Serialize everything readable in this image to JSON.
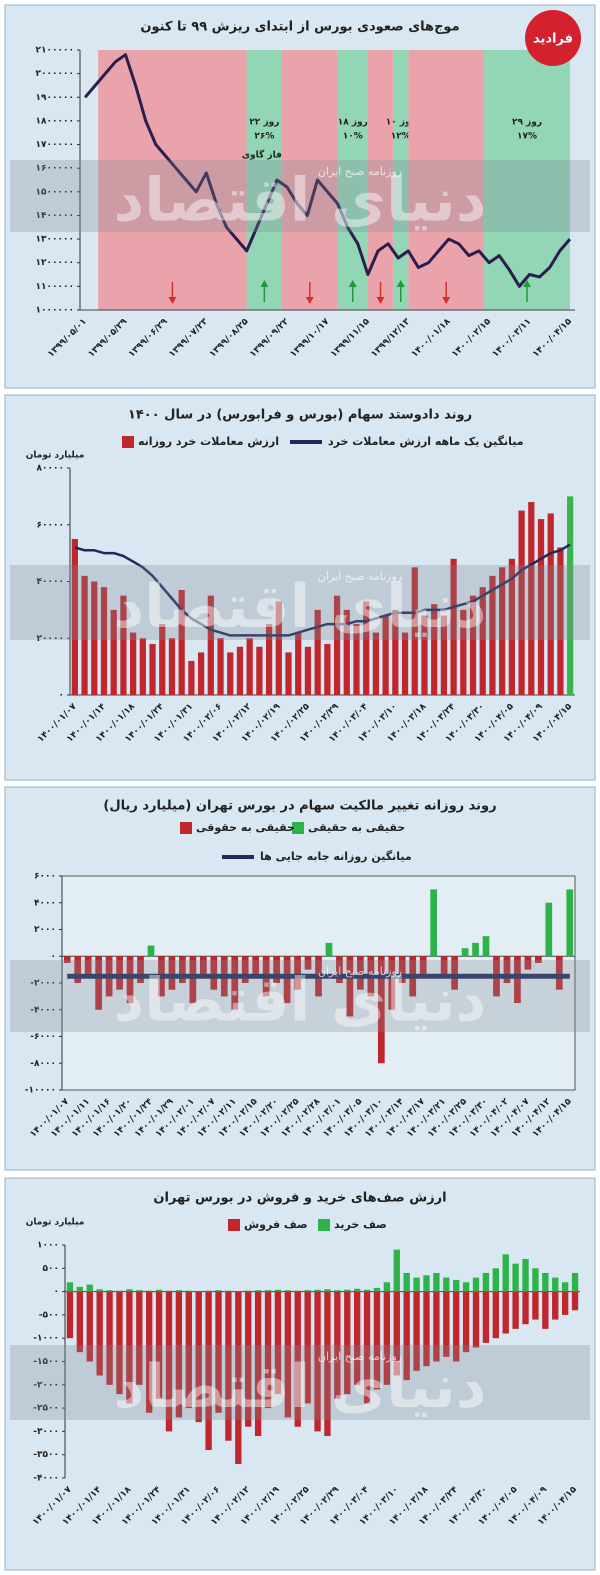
{
  "logo": "فرادید",
  "watermark": {
    "brand": "دنیای اقتصاد",
    "subtitle": "روزنامه صبح ایران"
  },
  "chart_data": [
    {
      "type": "line",
      "title": "موج‌های صعودی بورس از ابتدای ریزش ۹۹ تا کنون",
      "color": "#2b1d4e",
      "categories": [
        "۱۳۹۹/۰۵/۰۱",
        null,
        null,
        null,
        "۱۳۹۹/۰۵/۲۹",
        null,
        null,
        null,
        "۱۳۹۹/۰۶/۲۹",
        null,
        null,
        null,
        "۱۳۹۹/۰۷/۲۳",
        null,
        null,
        null,
        "۱۳۹۹/۰۸/۲۵",
        null,
        null,
        null,
        "۱۳۹۹/۰۹/۲۲",
        null,
        null,
        null,
        "۱۳۹۹/۱۰/۱۷",
        null,
        null,
        null,
        "۱۳۹۹/۱۱/۱۵",
        null,
        null,
        null,
        "۱۳۹۹/۱۲/۱۳",
        null,
        null,
        null,
        "۱۴۰۰/۰۱/۱۸",
        null,
        null,
        null,
        "۱۴۰۰/۰۲/۱۵",
        null,
        null,
        null,
        "۱۴۰۰/۰۳/۱۱",
        null,
        null,
        null,
        "۱۴۰۰/۰۴/۱۵"
      ],
      "values": [
        1900000,
        1950000,
        2000000,
        2050000,
        2080000,
        1950000,
        1800000,
        1700000,
        1650000,
        1600000,
        1550000,
        1500000,
        1580000,
        1450000,
        1350000,
        1300000,
        1250000,
        1350000,
        1450000,
        1550000,
        1520000,
        1450000,
        1400000,
        1550000,
        1500000,
        1450000,
        1350000,
        1280000,
        1150000,
        1250000,
        1280000,
        1220000,
        1250000,
        1180000,
        1200000,
        1250000,
        1300000,
        1280000,
        1230000,
        1250000,
        1200000,
        1230000,
        1170000,
        1100000,
        1150000,
        1140000,
        1180000,
        1250000,
        1300000
      ],
      "ylim": [
        1000000,
        2100000
      ],
      "yticks": [
        {
          "value": 1000000,
          "label": "۱۰۰۰۰۰۰"
        },
        {
          "value": 1100000,
          "label": "۱۱۰۰۰۰۰"
        },
        {
          "value": 1200000,
          "label": "۱۲۰۰۰۰۰"
        },
        {
          "value": 1300000,
          "label": "۱۳۰۰۰۰۰"
        },
        {
          "value": 1400000,
          "label": "۱۴۰۰۰۰۰"
        },
        {
          "value": 1500000,
          "label": "۱۵۰۰۰۰۰"
        },
        {
          "value": 1600000,
          "label": "۱۶۰۰۰۰۰"
        },
        {
          "value": 1700000,
          "label": "۱۷۰۰۰۰۰"
        },
        {
          "value": 1800000,
          "label": "۱۸۰۰۰۰۰"
        },
        {
          "value": 1900000,
          "label": "۱۹۰۰۰۰۰"
        },
        {
          "value": 2000000,
          "label": "۲۰۰۰۰۰۰"
        },
        {
          "value": 2100000,
          "label": "۲۱۰۰۰۰۰"
        }
      ],
      "regions": [
        {
          "start": 1.3,
          "end": 16,
          "color": "#eaa3ab",
          "direction": "down"
        },
        {
          "start": 16,
          "end": 19.5,
          "color": "#92d6b6",
          "direction": "up",
          "label": [
            "۲۲ روز",
            "۲۶%"
          ]
        },
        {
          "start": 19.5,
          "end": 25,
          "color": "#eaa3ab",
          "direction": "down"
        },
        {
          "start": 25,
          "end": 28,
          "color": "#92d6b6",
          "direction": "up",
          "label": [
            "۱۸ روز",
            "۱۰%"
          ]
        },
        {
          "start": 28,
          "end": 30.5,
          "color": "#eaa3ab",
          "direction": "down"
        },
        {
          "start": 30.5,
          "end": 32,
          "color": "#92d6b6",
          "direction": "up",
          "label": [
            "۱۰ روز",
            "۱۲%"
          ]
        },
        {
          "start": 32,
          "end": 39.5,
          "color": "#eaa3ab",
          "direction": "down"
        },
        {
          "start": 39.5,
          "end": 48,
          "color": "#92d6b6",
          "direction": "up",
          "label": [
            "۲۹ روز",
            "۱۷%"
          ]
        }
      ],
      "annotation": {
        "text": "فاز گاوی"
      }
    },
    {
      "type": "bar",
      "title": "روند دادوستد سهام (بورس و فرابورس) در سال ۱۴۰۰",
      "y_unit": "میلیارد تومان",
      "categories": [
        "۱۴۰۰/۰۱/۰۷",
        null,
        null,
        "۱۴۰۰/۰۱/۱۴",
        null,
        null,
        "۱۴۰۰/۰۱/۱۸",
        null,
        null,
        "۱۴۰۰/۰۱/۲۴",
        null,
        null,
        "۱۴۰۰/۰۱/۳۱",
        null,
        null,
        "۱۴۰۰/۰۲/۰۶",
        null,
        null,
        "۱۴۰۰/۰۲/۱۲",
        null,
        null,
        "۱۴۰۰/۰۲/۱۹",
        null,
        null,
        "۱۴۰۰/۰۲/۲۵",
        null,
        null,
        "۱۴۰۰/۰۲/۲۹",
        null,
        null,
        "۱۴۰۰/۰۳/۰۴",
        null,
        null,
        "۱۴۰۰/۰۳/۱۰",
        null,
        null,
        "۱۴۰۰/۰۳/۱۸",
        null,
        null,
        "۱۴۰۰/۰۳/۲۴",
        null,
        null,
        "۱۴۰۰/۰۳/۳۰",
        null,
        null,
        "۱۴۰۰/۰۴/۰۵",
        null,
        null,
        "۱۴۰۰/۰۴/۰۹",
        null,
        null,
        "۱۴۰۰/۰۴/۱۵"
      ],
      "series": [
        {
          "name": "ارزش معاملات خرد روزانه",
          "type": "bar",
          "color": "#c0272d",
          "colors": [
            "#c0272d",
            "#c0272d",
            "#c0272d",
            "#c0272d",
            "#c0272d",
            "#c0272d",
            "#c0272d",
            "#c0272d",
            "#c0272d",
            "#c0272d",
            "#c0272d",
            "#c0272d",
            "#c0272d",
            "#c0272d",
            "#c0272d",
            "#c0272d",
            "#c0272d",
            "#c0272d",
            "#c0272d",
            "#c0272d",
            "#c0272d",
            "#c0272d",
            "#c0272d",
            "#c0272d",
            "#c0272d",
            "#c0272d",
            "#c0272d",
            "#c0272d",
            "#c0272d",
            "#c0272d",
            "#c0272d",
            "#c0272d",
            "#c0272d",
            "#c0272d",
            "#c0272d",
            "#c0272d",
            "#c0272d",
            "#c0272d",
            "#c0272d",
            "#c0272d",
            "#c0272d",
            "#c0272d",
            "#c0272d",
            "#c0272d",
            "#c0272d",
            "#c0272d",
            "#c0272d",
            "#c0272d",
            "#c0272d",
            "#c0272d",
            "#c0272d",
            "#3cb44b"
          ],
          "values": [
            55000,
            42000,
            40000,
            38000,
            30000,
            35000,
            22000,
            20000,
            18000,
            25000,
            20000,
            37000,
            12000,
            15000,
            35000,
            20000,
            15000,
            17000,
            20000,
            17000,
            25000,
            33000,
            15000,
            22000,
            17000,
            30000,
            18000,
            35000,
            30000,
            25000,
            33000,
            22000,
            28000,
            30000,
            22000,
            45000,
            28000,
            32000,
            28000,
            48000,
            30000,
            35000,
            38000,
            42000,
            45000,
            48000,
            65000,
            68000,
            62000,
            64000,
            52000,
            70000
          ]
        },
        {
          "name": "میانگین یک ماهه ارزش معاملات خرد",
          "type": "line",
          "color": "#1f2a5a",
          "values": [
            52000,
            51000,
            51000,
            50000,
            50000,
            49000,
            47000,
            45000,
            42000,
            38000,
            34000,
            30000,
            27000,
            25000,
            23000,
            22000,
            21000,
            21000,
            21000,
            21000,
            21000,
            21000,
            21000,
            22000,
            23000,
            24000,
            25000,
            25000,
            25000,
            26000,
            26000,
            27000,
            28000,
            29000,
            29000,
            29000,
            30000,
            30000,
            30000,
            31000,
            32000,
            33000,
            35000,
            37000,
            39000,
            41000,
            44000,
            46000,
            48000,
            50000,
            51000,
            53000
          ]
        }
      ],
      "ylim": [
        0,
        80000
      ],
      "yticks": [
        {
          "value": 0,
          "label": "۰"
        },
        {
          "value": 20000,
          "label": "۲۰۰۰۰"
        },
        {
          "value": 40000,
          "label": "۴۰۰۰۰"
        },
        {
          "value": 60000,
          "label": "۶۰۰۰۰"
        },
        {
          "value": 80000,
          "label": "۸۰۰۰۰"
        }
      ]
    },
    {
      "type": "bar",
      "title": "روند روزانه تغییر مالکیت سهام در بورس تهران (میلیارد ریال)",
      "frame": true,
      "categories": [
        "۱۴۰۰/۰۱/۰۷",
        null,
        "۱۴۰۰/۰۱/۱۱",
        null,
        "۱۴۰۰/۰۱/۱۶",
        null,
        "۱۴۰۰/۰۱/۲۰",
        null,
        "۱۴۰۰/۰۱/۲۴",
        null,
        "۱۴۰۰/۰۱/۲۹",
        null,
        "۱۴۰۰/۰۲/۰۱",
        null,
        "۱۴۰۰/۰۲/۰۷",
        null,
        "۱۴۰۰/۰۲/۱۱",
        null,
        "۱۴۰۰/۰۲/۱۵",
        null,
        "۱۴۰۰/۰۲/۲۰",
        null,
        "۱۴۰۰/۰۲/۲۵",
        null,
        "۱۴۰۰/۰۲/۲۸",
        null,
        "۱۴۰۰/۰۳/۰۱",
        null,
        "۱۴۰۰/۰۳/۰۵",
        null,
        "۱۴۰۰/۰۳/۱۰",
        null,
        "۱۴۰۰/۰۳/۱۴",
        null,
        "۱۴۰۰/۰۳/۱۷",
        null,
        "۱۴۰۰/۰۳/۲۱",
        null,
        "۱۴۰۰/۰۳/۲۵",
        null,
        "۱۴۰۰/۰۳/۳۰",
        null,
        "۱۴۰۰/۰۴/۰۲",
        null,
        "۱۴۰۰/۰۴/۰۷",
        null,
        "۱۴۰۰/۰۴/۱۲",
        null,
        "۱۴۰۰/۰۴/۱۵"
      ],
      "series": [
        {
          "name": "حقیقی به حقیقی",
          "type": "bar",
          "color": "#2db34a",
          "values": [
            null,
            null,
            null,
            null,
            null,
            null,
            null,
            null,
            800,
            null,
            null,
            null,
            null,
            null,
            null,
            null,
            null,
            null,
            null,
            null,
            null,
            null,
            null,
            null,
            null,
            1000,
            null,
            null,
            null,
            null,
            null,
            null,
            null,
            null,
            null,
            5000,
            null,
            null,
            600,
            1000,
            1500,
            null,
            null,
            null,
            null,
            null,
            4000,
            null,
            5000
          ]
        },
        {
          "name": "حقیقی به حقوقی",
          "type": "bar",
          "color": "#c0272d",
          "values": [
            -500,
            -2000,
            -1500,
            -4000,
            -3000,
            -2500,
            -3500,
            -2000,
            null,
            -3000,
            -2500,
            -2000,
            -3500,
            -1500,
            -2500,
            -3000,
            -4000,
            -2000,
            -1500,
            -3000,
            -2000,
            -3500,
            -2500,
            -1000,
            -3000,
            null,
            -2000,
            -4500,
            -2500,
            -3000,
            -8000,
            -4000,
            -2000,
            -3000,
            -1500,
            null,
            -1500,
            -2500,
            null,
            null,
            null,
            -3000,
            -2000,
            -3500,
            -1000,
            -500,
            null,
            -2500,
            null
          ]
        },
        {
          "name": "میانگین روزانه جابه جایی ها",
          "type": "line",
          "color": "#222a5c",
          "values": [
            -1500,
            -1500,
            -1500,
            -1500,
            -1500,
            -1500,
            -1500,
            -1500,
            -1500,
            -1500,
            -1500,
            -1500,
            -1500,
            -1500,
            -1500,
            -1500,
            -1500,
            -1500,
            -1500,
            -1500,
            -1500,
            -1500,
            -1500,
            -1500,
            -1500,
            -1500,
            -1500,
            -1500,
            -1500,
            -1500,
            -1500,
            -1500,
            -1500,
            -1500,
            -1500,
            -1500,
            -1500,
            -1500,
            -1500,
            -1500,
            -1500,
            -1500,
            -1500,
            -1500,
            -1500,
            -1500,
            -1500,
            -1500,
            -1500
          ]
        }
      ],
      "ylim": [
        -10000,
        6000
      ],
      "yticks": [
        {
          "value": 6000,
          "label": "۶۰۰۰"
        },
        {
          "value": 4000,
          "label": "۴۰۰۰"
        },
        {
          "value": 2000,
          "label": "۲۰۰۰"
        },
        {
          "value": 0,
          "label": "۰"
        },
        {
          "value": -2000,
          "label": "-۲۰۰۰"
        },
        {
          "value": -4000,
          "label": "-۴۰۰۰"
        },
        {
          "value": -6000,
          "label": "-۶۰۰۰"
        },
        {
          "value": -8000,
          "label": "-۸۰۰۰"
        },
        {
          "value": -10000,
          "label": "-۱۰۰۰۰"
        }
      ]
    },
    {
      "type": "bar",
      "title": "ارزش صف‌های خرید و فروش در بورس تهران",
      "y_unit": "میلیارد تومان",
      "categories": [
        "۱۴۰۰/۰۱/۰۷",
        null,
        null,
        "۱۴۰۰/۰۱/۱۴",
        null,
        null,
        "۱۴۰۰/۰۱/۱۸",
        null,
        null,
        "۱۴۰۰/۰۱/۲۴",
        null,
        null,
        "۱۴۰۰/۰۱/۳۱",
        null,
        null,
        "۱۴۰۰/۰۲/۰۶",
        null,
        null,
        "۱۴۰۰/۰۲/۱۲",
        null,
        null,
        "۱۴۰۰/۰۲/۱۹",
        null,
        null,
        "۱۴۰۰/۰۲/۲۵",
        null,
        null,
        "۱۴۰۰/۰۲/۲۹",
        null,
        null,
        "۱۴۰۰/۰۳/۰۴",
        null,
        null,
        "۱۴۰۰/۰۳/۱۰",
        null,
        null,
        "۱۴۰۰/۰۳/۱۸",
        null,
        null,
        "۱۴۰۰/۰۳/۲۴",
        null,
        null,
        "۱۴۰۰/۰۳/۳۰",
        null,
        null,
        "۱۴۰۰/۰۴/۰۵",
        null,
        null,
        "۱۴۰۰/۰۴/۰۹",
        null,
        null,
        "۱۴۰۰/۰۴/۱۵"
      ],
      "series": [
        {
          "name": "صف خرید",
          "type": "bar",
          "color": "#2db34a",
          "values": [
            200,
            100,
            150,
            50,
            30,
            20,
            50,
            30,
            20,
            40,
            20,
            30,
            20,
            10,
            20,
            30,
            20,
            10,
            20,
            30,
            30,
            40,
            30,
            20,
            30,
            40,
            50,
            30,
            40,
            60,
            40,
            80,
            200,
            900,
            400,
            300,
            350,
            400,
            300,
            250,
            200,
            300,
            400,
            500,
            800,
            600,
            700,
            500,
            400,
            300,
            200,
            400
          ]
        },
        {
          "name": "صف فروش",
          "type": "bar",
          "color": "#c0272d",
          "values": [
            -1000,
            -1300,
            -1500,
            -1800,
            -2000,
            -2200,
            -2400,
            -2000,
            -2600,
            -2300,
            -3000,
            -2700,
            -2500,
            -2800,
            -3400,
            -2600,
            -3200,
            -3700,
            -2900,
            -3100,
            -2500,
            -2200,
            -2700,
            -2900,
            -2400,
            -3000,
            -3100,
            -2300,
            -2200,
            -2000,
            -2400,
            -2100,
            -2000,
            -1800,
            -1900,
            -1700,
            -1600,
            -1500,
            -1400,
            -1500,
            -1300,
            -1200,
            -1100,
            -1000,
            -900,
            -800,
            -700,
            -600,
            -800,
            -600,
            -500,
            -400
          ]
        }
      ],
      "ylim": [
        -4000,
        1000
      ],
      "yticks": [
        {
          "value": 1000,
          "label": "۱۰۰۰"
        },
        {
          "value": 500,
          "label": "۵۰۰"
        },
        {
          "value": 0,
          "label": "۰"
        },
        {
          "value": -500,
          "label": "-۵۰۰"
        },
        {
          "value": -1000,
          "label": "-۱۰۰۰"
        },
        {
          "value": -1500,
          "label": "-۱۵۰۰"
        },
        {
          "value": -2000,
          "label": "-۲۰۰۰"
        },
        {
          "value": -2500,
          "label": "-۲۵۰۰"
        },
        {
          "value": -3000,
          "label": "-۳۰۰۰"
        },
        {
          "value": -3500,
          "label": "-۳۵۰۰"
        },
        {
          "value": -4000,
          "label": "-۴۰۰۰"
        }
      ]
    }
  ]
}
